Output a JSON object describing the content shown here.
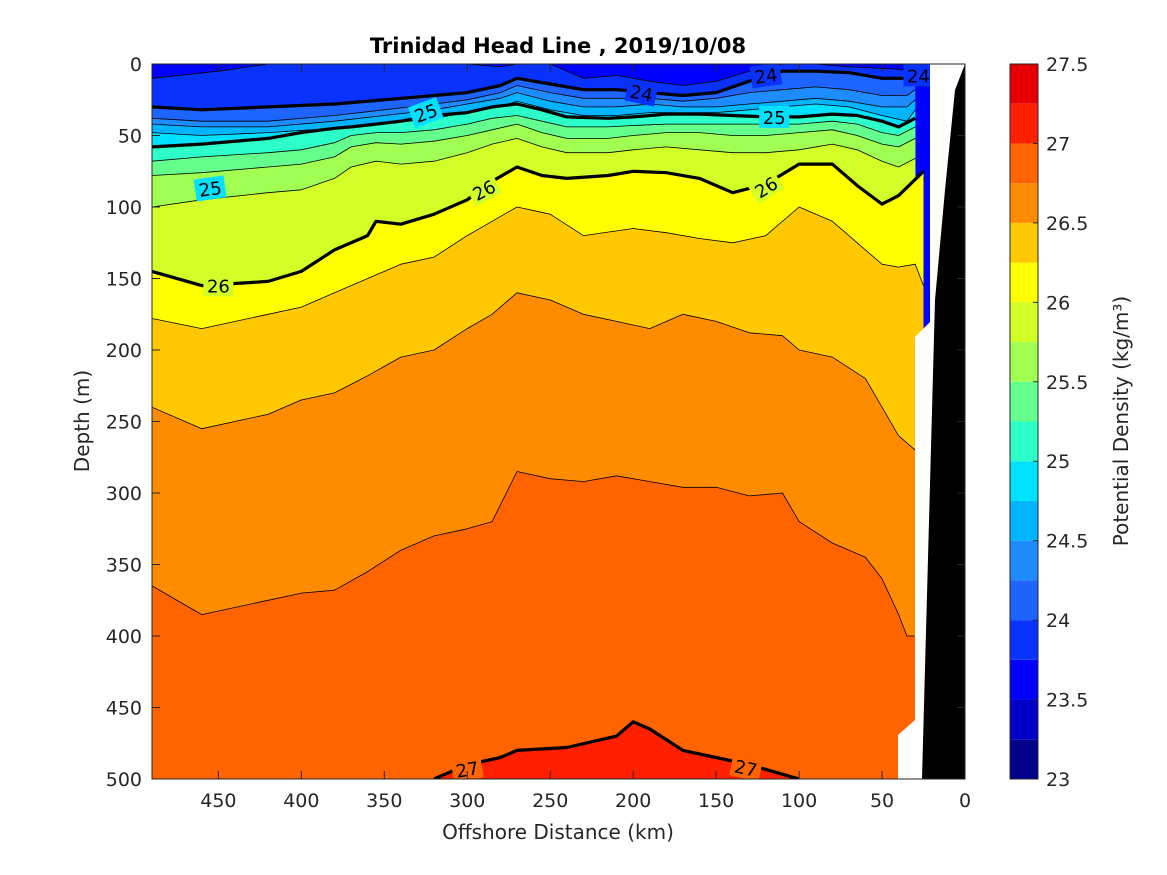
{
  "chart_data": {
    "type": "heatmap",
    "subtype": "filled-contour",
    "title": "Trinidad Head Line , 2019/10/08",
    "xlabel": "Offshore Distance (km)",
    "ylabel": "Depth (m)",
    "colorbar_label": "Potential Density (kg/m³)",
    "xlim": [
      490,
      0
    ],
    "ylim": [
      500,
      0
    ],
    "x_reversed": true,
    "y_reversed": true,
    "x_ticks": [
      450,
      400,
      350,
      300,
      250,
      200,
      150,
      100,
      50,
      0
    ],
    "y_ticks": [
      0,
      50,
      100,
      150,
      200,
      250,
      300,
      350,
      400,
      450,
      500
    ],
    "colorbar_ticks": [
      "23",
      "23.5",
      "24",
      "24.5",
      "25",
      "25.5",
      "26",
      "26.5",
      "27",
      "27.5"
    ],
    "levels": [
      23,
      23.25,
      23.5,
      23.75,
      24,
      24.25,
      24.5,
      24.75,
      25,
      25.25,
      25.5,
      25.75,
      26,
      26.25,
      26.5,
      26.75,
      27,
      27.25,
      27.5
    ],
    "colors": [
      "#00008b",
      "#0000c8",
      "#0000ff",
      "#0a32ff",
      "#1e64ff",
      "#1e8cff",
      "#00b4ff",
      "#00e0ff",
      "#2dffc8",
      "#64ff8c",
      "#a0ff50",
      "#d2ff28",
      "#ffff00",
      "#ffc800",
      "#ff8c00",
      "#ff6400",
      "#ff2000",
      "#e60000",
      "#b40000"
    ],
    "contour_labels": [
      {
        "text": "24",
        "x": 120,
        "y": 8,
        "angle": -8
      },
      {
        "text": "24",
        "x": 195,
        "y": 20,
        "angle": 12
      },
      {
        "text": "24",
        "x": 28,
        "y": 8,
        "angle": 0
      },
      {
        "text": "25",
        "x": 325,
        "y": 34,
        "angle": -20
      },
      {
        "text": "25",
        "x": 115,
        "y": 37,
        "angle": 0
      },
      {
        "text": "25",
        "x": 455,
        "y": 87,
        "angle": -8
      },
      {
        "text": "26",
        "x": 290,
        "y": 88,
        "angle": -28
      },
      {
        "text": "26",
        "x": 120,
        "y": 86,
        "angle": -32
      },
      {
        "text": "26",
        "x": 450,
        "y": 155,
        "angle": 0
      },
      {
        "text": "27",
        "x": 300,
        "y": 493,
        "angle": -10
      },
      {
        "text": "27",
        "x": 132,
        "y": 492,
        "angle": 12
      }
    ],
    "isopycnals": [
      {
        "level": 23.75,
        "x": [
          490,
          450,
          420,
          380,
          350,
          320,
          300,
          280,
          270,
          250,
          230,
          210,
          190,
          170,
          150,
          130,
          110,
          90,
          70,
          50,
          35,
          30
        ],
        "y": [
          10,
          5,
          0,
          0,
          0,
          0,
          0,
          2,
          0,
          0,
          10,
          8,
          12,
          15,
          12,
          5,
          0,
          0,
          2,
          3,
          4,
          4
        ]
      },
      {
        "level": 24.0,
        "x": [
          490,
          460,
          420,
          380,
          350,
          320,
          300,
          280,
          270,
          250,
          230,
          210,
          190,
          170,
          150,
          130,
          110,
          90,
          70,
          50,
          35,
          30
        ],
        "y": [
          30,
          32,
          30,
          28,
          25,
          22,
          20,
          15,
          10,
          14,
          18,
          18,
          20,
          22,
          20,
          12,
          5,
          5,
          6,
          10,
          10,
          8
        ]
      },
      {
        "level": 24.25,
        "x": [
          490,
          460,
          420,
          380,
          350,
          320,
          300,
          280,
          270,
          250,
          230,
          210,
          190,
          170,
          150,
          130,
          110,
          90,
          70,
          50,
          35,
          30
        ],
        "y": [
          38,
          40,
          40,
          36,
          32,
          28,
          25,
          20,
          15,
          20,
          24,
          24,
          24,
          26,
          24,
          20,
          18,
          16,
          18,
          22,
          22,
          18
        ]
      },
      {
        "level": 24.5,
        "x": [
          490,
          460,
          420,
          380,
          350,
          320,
          300,
          280,
          270,
          250,
          230,
          210,
          190,
          170,
          150,
          130,
          110,
          90,
          70,
          50,
          35,
          30
        ],
        "y": [
          42,
          44,
          44,
          40,
          36,
          32,
          28,
          24,
          20,
          26,
          30,
          30,
          28,
          30,
          30,
          28,
          26,
          24,
          26,
          30,
          30,
          25
        ]
      },
      {
        "level": 24.75,
        "x": [
          490,
          460,
          420,
          380,
          350,
          320,
          300,
          280,
          270,
          250,
          230,
          210,
          190,
          170,
          150,
          130,
          110,
          90,
          70,
          50,
          35,
          30
        ],
        "y": [
          48,
          50,
          48,
          45,
          42,
          38,
          34,
          30,
          26,
          32,
          36,
          36,
          34,
          34,
          34,
          32,
          30,
          28,
          30,
          36,
          40,
          32
        ]
      },
      {
        "level": 25.0,
        "x": [
          490,
          460,
          420,
          400,
          380,
          370,
          355,
          340,
          320,
          300,
          285,
          270,
          255,
          240,
          215,
          200,
          180,
          160,
          140,
          120,
          100,
          80,
          65,
          50,
          40,
          30
        ],
        "y": [
          58,
          56,
          52,
          48,
          45,
          44,
          42,
          40,
          36,
          34,
          30,
          28,
          32,
          37,
          38,
          37,
          35,
          35,
          36,
          37,
          37,
          35,
          36,
          40,
          44,
          38
        ]
      },
      {
        "level": 25.25,
        "x": [
          490,
          460,
          420,
          400,
          380,
          370,
          355,
          340,
          320,
          300,
          285,
          270,
          255,
          240,
          215,
          200,
          180,
          160,
          140,
          120,
          100,
          80,
          65,
          50,
          40,
          30
        ],
        "y": [
          68,
          65,
          62,
          60,
          55,
          50,
          48,
          48,
          46,
          42,
          38,
          36,
          40,
          44,
          44,
          43,
          42,
          42,
          42,
          42,
          42,
          40,
          42,
          48,
          50,
          44
        ]
      },
      {
        "level": 25.5,
        "x": [
          490,
          460,
          420,
          400,
          380,
          370,
          355,
          340,
          320,
          300,
          285,
          270,
          255,
          240,
          215,
          200,
          180,
          160,
          140,
          120,
          100,
          80,
          65,
          50,
          40,
          30
        ],
        "y": [
          78,
          76,
          72,
          70,
          65,
          58,
          55,
          56,
          54,
          50,
          46,
          42,
          48,
          52,
          52,
          50,
          48,
          48,
          50,
          50,
          48,
          46,
          50,
          56,
          58,
          52
        ]
      },
      {
        "level": 25.75,
        "x": [
          490,
          460,
          420,
          400,
          380,
          370,
          355,
          340,
          320,
          300,
          285,
          270,
          255,
          240,
          215,
          200,
          180,
          160,
          140,
          120,
          100,
          80,
          65,
          50,
          40,
          30
        ],
        "y": [
          100,
          95,
          90,
          88,
          80,
          72,
          68,
          70,
          68,
          62,
          56,
          52,
          58,
          62,
          62,
          60,
          58,
          60,
          62,
          62,
          60,
          56,
          60,
          68,
          72,
          66
        ]
      },
      {
        "level": 26.0,
        "x": [
          490,
          460,
          420,
          400,
          380,
          360,
          355,
          340,
          320,
          300,
          285,
          270,
          255,
          240,
          215,
          200,
          180,
          160,
          140,
          120,
          100,
          80,
          65,
          50,
          40,
          25
        ],
        "y": [
          145,
          155,
          152,
          145,
          130,
          120,
          110,
          112,
          105,
          95,
          82,
          72,
          78,
          80,
          78,
          75,
          76,
          80,
          90,
          84,
          70,
          70,
          85,
          98,
          92,
          75
        ]
      },
      {
        "level": 26.25,
        "x": [
          490,
          460,
          420,
          400,
          380,
          360,
          340,
          320,
          300,
          285,
          270,
          250,
          230,
          200,
          180,
          160,
          140,
          120,
          100,
          80,
          60,
          50,
          40,
          30,
          25
        ],
        "y": [
          178,
          185,
          175,
          170,
          160,
          150,
          140,
          135,
          120,
          110,
          100,
          105,
          120,
          115,
          118,
          122,
          125,
          120,
          100,
          110,
          130,
          140,
          142,
          140,
          155
        ]
      },
      {
        "level": 26.5,
        "x": [
          490,
          460,
          420,
          400,
          380,
          360,
          340,
          320,
          300,
          285,
          270,
          250,
          230,
          210,
          190,
          170,
          150,
          130,
          110,
          100,
          80,
          60,
          50,
          40,
          30,
          25
        ],
        "y": [
          240,
          255,
          245,
          235,
          230,
          218,
          205,
          200,
          185,
          175,
          160,
          165,
          175,
          180,
          185,
          175,
          180,
          188,
          190,
          200,
          205,
          220,
          240,
          260,
          270,
          185
        ]
      },
      {
        "level": 26.75,
        "x": [
          490,
          460,
          420,
          400,
          380,
          360,
          340,
          320,
          300,
          285,
          270,
          250,
          230,
          210,
          190,
          170,
          150,
          130,
          110,
          100,
          80,
          60,
          50,
          40,
          35,
          30
        ],
        "y": [
          365,
          385,
          375,
          370,
          368,
          355,
          340,
          330,
          325,
          320,
          285,
          290,
          292,
          288,
          292,
          296,
          296,
          302,
          300,
          320,
          335,
          345,
          360,
          385,
          400,
          400
        ]
      },
      {
        "level": 27.0,
        "x": [
          320,
          300,
          280,
          270,
          240,
          210,
          200,
          190,
          170,
          150,
          130,
          100
        ],
        "y": [
          500,
          490,
          485,
          480,
          478,
          470,
          460,
          465,
          480,
          485,
          490,
          500
        ]
      }
    ],
    "grid": false
  }
}
